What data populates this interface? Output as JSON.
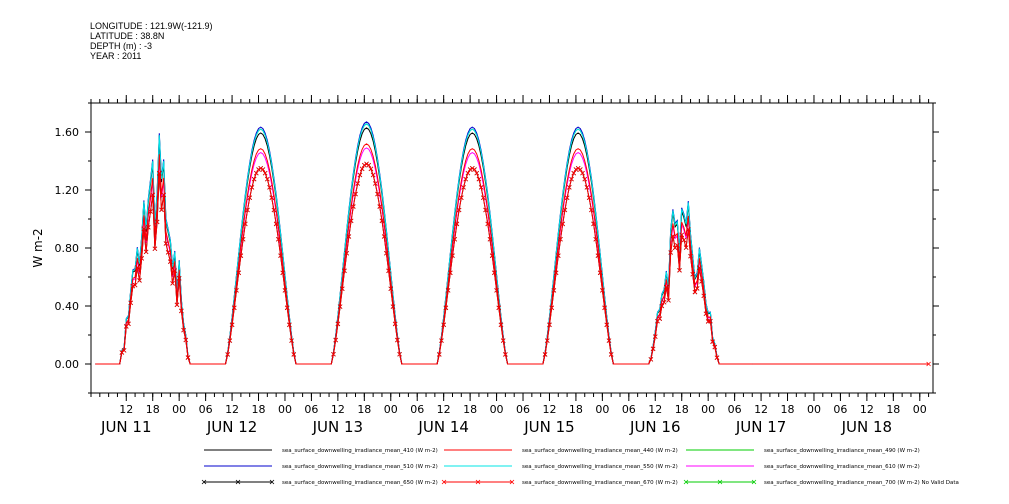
{
  "header": {
    "longitude": "LONGITUDE : 121.9W(-121.9)",
    "latitude": "LATITUDE : 38.8N",
    "depth": "DEPTH (m) : -3",
    "year": "YEAR : 2011"
  },
  "chart_data": {
    "type": "line",
    "ylabel": "W m-2",
    "ylim": [
      -0.2,
      1.8
    ],
    "yticks": [
      0.0,
      0.4,
      0.8,
      1.2,
      1.6
    ],
    "ytick_labels": [
      "0.00",
      "0.40",
      "0.80",
      "1.20",
      "1.60"
    ],
    "xlim_hours": [
      -20,
      171
    ],
    "hour_ticks": [
      {
        "h": -12,
        "label": "12"
      },
      {
        "h": -6,
        "label": "18"
      },
      {
        "h": 0,
        "label": "00"
      },
      {
        "h": 6,
        "label": "06"
      },
      {
        "h": 12,
        "label": "12"
      },
      {
        "h": 18,
        "label": "18"
      },
      {
        "h": 24,
        "label": "00"
      },
      {
        "h": 30,
        "label": "06"
      },
      {
        "h": 36,
        "label": "12"
      },
      {
        "h": 42,
        "label": "18"
      },
      {
        "h": 48,
        "label": "00"
      },
      {
        "h": 54,
        "label": "06"
      },
      {
        "h": 60,
        "label": "12"
      },
      {
        "h": 66,
        "label": "18"
      },
      {
        "h": 72,
        "label": "00"
      },
      {
        "h": 78,
        "label": "06"
      },
      {
        "h": 84,
        "label": "12"
      },
      {
        "h": 90,
        "label": "18"
      },
      {
        "h": 96,
        "label": "00"
      },
      {
        "h": 102,
        "label": "06"
      },
      {
        "h": 108,
        "label": "12"
      },
      {
        "h": 114,
        "label": "18"
      },
      {
        "h": 120,
        "label": "00"
      },
      {
        "h": 126,
        "label": "06"
      },
      {
        "h": 132,
        "label": "12"
      },
      {
        "h": 138,
        "label": "18"
      },
      {
        "h": 144,
        "label": "00"
      },
      {
        "h": 150,
        "label": "06"
      },
      {
        "h": 156,
        "label": "12"
      },
      {
        "h": 162,
        "label": "18"
      },
      {
        "h": 168,
        "label": "00"
      }
    ],
    "date_labels": [
      {
        "h": -12,
        "label": "JUN 11"
      },
      {
        "h": 12,
        "label": "JUN 12"
      },
      {
        "h": 36,
        "label": "JUN 13"
      },
      {
        "h": 60,
        "label": "JUN 14"
      },
      {
        "h": 84,
        "label": "JUN 15"
      },
      {
        "h": 108,
        "label": "JUN 16"
      },
      {
        "h": 132,
        "label": "JUN 17"
      },
      {
        "h": 156,
        "label": "JUN 18"
      }
    ],
    "days": [
      {
        "start": -13.5,
        "end": 2.5,
        "peak": 1.35,
        "noisy": true
      },
      {
        "start": 10.5,
        "end": 26.5,
        "peak": 1.35,
        "noisy": false
      },
      {
        "start": 34.5,
        "end": 50.5,
        "peak": 1.38,
        "noisy": false
      },
      {
        "start": 58.5,
        "end": 74.5,
        "peak": 1.35,
        "noisy": false
      },
      {
        "start": 82.5,
        "end": 98.5,
        "peak": 1.35,
        "noisy": false
      },
      {
        "start": 106.5,
        "end": 122.5,
        "peak": 1.05,
        "noisy": true
      }
    ],
    "data_end_hour": 130,
    "flat_extension_end_hour": 170,
    "series": [
      {
        "name": "sea_surface_downwelling_irradiance_mean_410 (W m-2)",
        "color": "#000000",
        "factor": 1.18,
        "marker": "none"
      },
      {
        "name": "sea_surface_downwelling_irradiance_mean_440 (W m-2)",
        "color": "#ff0000",
        "factor": 1.1,
        "marker": "none"
      },
      {
        "name": "sea_surface_downwelling_irradiance_mean_490 (W m-2)",
        "color": "#00cc00",
        "factor": 1.2,
        "marker": "none"
      },
      {
        "name": "sea_surface_downwelling_irradiance_mean_510 (W m-2)",
        "color": "#0000cc",
        "factor": 1.21,
        "marker": "none"
      },
      {
        "name": "sea_surface_downwelling_irradiance_mean_550 (W m-2)",
        "color": "#00e5e5",
        "factor": 1.2,
        "marker": "none"
      },
      {
        "name": "sea_surface_downwelling_irradiance_mean_610 (W m-2)",
        "color": "#ff00ff",
        "factor": 1.08,
        "marker": "none"
      },
      {
        "name": "sea_surface_downwelling_irradiance_mean_650 (W m-2)",
        "color": "#000000",
        "factor": 1.0,
        "marker": "x"
      },
      {
        "name": "sea_surface_downwelling_irradiance_mean_670 (W m-2)",
        "color": "#ff0000",
        "factor": 1.0,
        "marker": "x"
      },
      {
        "name": "sea_surface_downwelling_irradiance_mean_700 (W m-2) No Valid Data",
        "color": "#00cc00",
        "factor": 0,
        "marker": "x"
      }
    ]
  }
}
